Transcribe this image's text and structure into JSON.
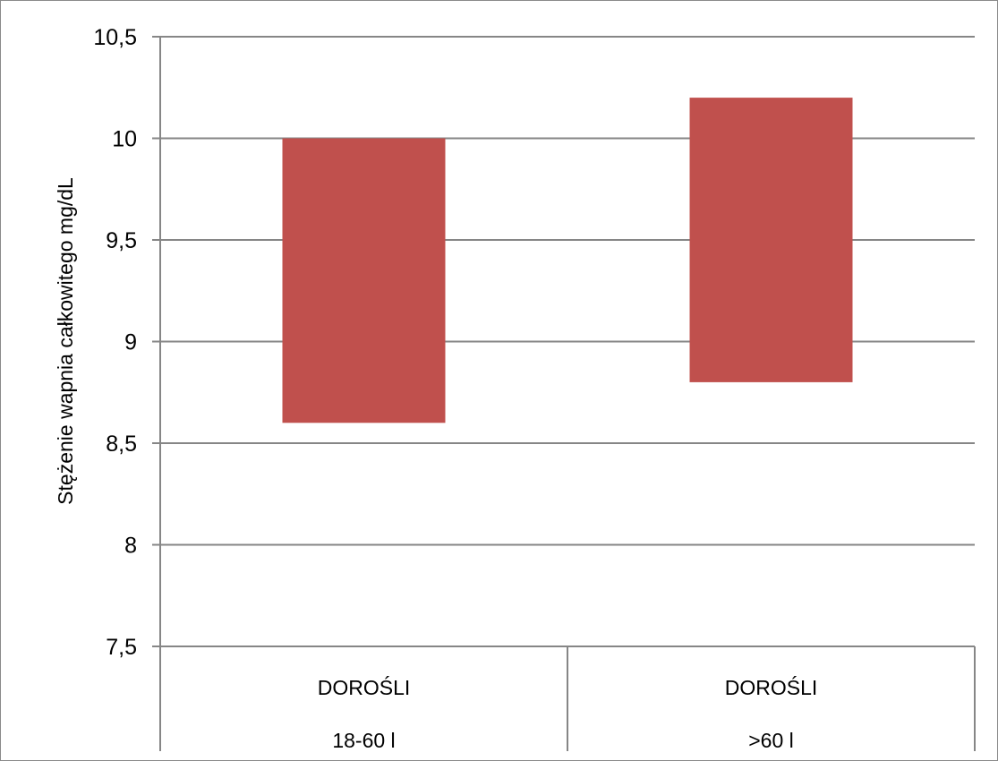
{
  "chart_data": {
    "type": "bar",
    "subtype": "floating-range",
    "title": "",
    "xlabel": "",
    "ylabel": "Stężenie wapnia całkowitego mg/dL",
    "ylim": [
      7.5,
      10.5
    ],
    "y_ticks": [
      "7,5",
      "8",
      "8,5",
      "9",
      "9,5",
      "10",
      "10,5"
    ],
    "y_tick_values": [
      7.5,
      8,
      8.5,
      9,
      9.5,
      10,
      10.5
    ],
    "grid": true,
    "legend": "none",
    "bar_color": "#c0504d",
    "categories": [
      {
        "line1": "DOROŚLI",
        "line2": "18-60 l"
      },
      {
        "line1": "DOROŚLI",
        "line2": ">60 l"
      }
    ],
    "ranges": [
      {
        "low": 8.6,
        "high": 10.0
      },
      {
        "low": 8.8,
        "high": 10.2
      }
    ]
  }
}
